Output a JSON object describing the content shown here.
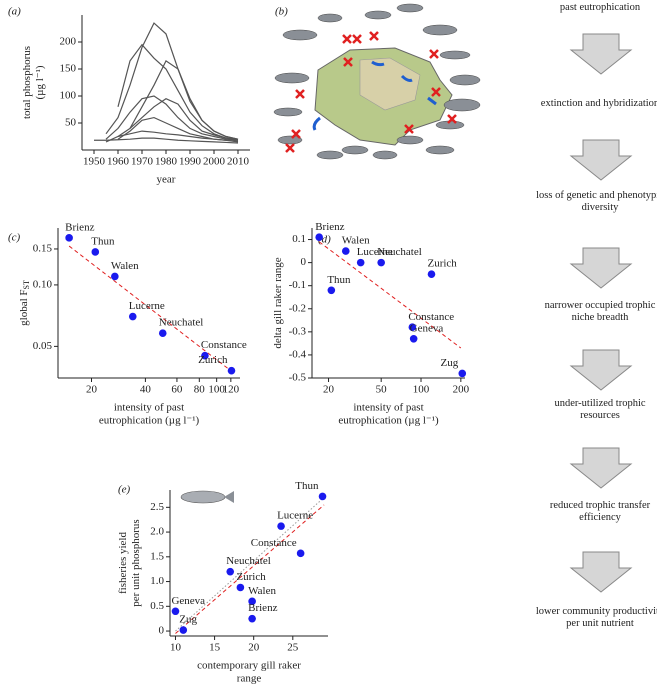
{
  "chart_data": [
    {
      "type": "line",
      "panel_label": "(a)",
      "xlabel": "year",
      "ylabel": [
        "total phosphorus",
        "(µg l⁻¹)"
      ],
      "x": [
        1950,
        1955,
        1960,
        1965,
        1970,
        1975,
        1980,
        1985,
        1990,
        1995,
        2000,
        2005,
        2010
      ],
      "series": [
        {
          "color": "#555555",
          "values": [
            null,
            30,
            60,
            120,
            190,
            235,
            215,
            150,
            95,
            55,
            35,
            25,
            20
          ]
        },
        {
          "color": "#555555",
          "values": [
            null,
            null,
            80,
            165,
            195,
            170,
            150,
            110,
            70,
            45,
            30,
            22,
            18
          ]
        },
        {
          "color": "#555555",
          "values": [
            null,
            null,
            null,
            40,
            80,
            120,
            165,
            150,
            90,
            55,
            35,
            25,
            20
          ]
        },
        {
          "color": "#555555",
          "values": [
            null,
            20,
            40,
            70,
            95,
            100,
            85,
            60,
            40,
            30,
            25,
            20,
            18
          ]
        },
        {
          "color": "#555555",
          "values": [
            null,
            null,
            25,
            40,
            60,
            80,
            95,
            85,
            55,
            35,
            28,
            22,
            20
          ]
        },
        {
          "color": "#555555",
          "values": [
            null,
            null,
            20,
            35,
            55,
            60,
            50,
            40,
            30,
            25,
            20,
            18,
            16
          ]
        },
        {
          "color": "#555555",
          "values": [
            null,
            15,
            25,
            30,
            35,
            33,
            30,
            28,
            25,
            22,
            20,
            18,
            15
          ]
        },
        {
          "color": "#555555",
          "values": [
            18,
            18,
            19,
            20,
            22,
            22,
            20,
            18,
            17,
            16,
            15,
            14,
            13
          ]
        }
      ],
      "xlim": [
        1945,
        2015
      ],
      "xticks": [
        1950,
        1960,
        1970,
        1980,
        1990,
        2000,
        2010
      ],
      "ylim": [
        0,
        250
      ],
      "yticks": [
        50,
        100,
        150,
        200
      ]
    },
    {
      "type": "scatter",
      "panel_label": "(c)",
      "xlabel": [
        "intensity of past",
        "eutrophication (µg l⁻¹)"
      ],
      "ylabel": "global F",
      "ylabel_subscript": "ST",
      "xscale": "log",
      "yscale": "log",
      "x": [
        15,
        21,
        27,
        34,
        50,
        86,
        121
      ],
      "series": [
        {
          "color": "#1a1aee",
          "values": [
            0.17,
            0.145,
            0.11,
            0.07,
            0.058,
            0.045,
            0.038
          ]
        }
      ],
      "point_labels": [
        "Brienz",
        "Thun",
        "Walen",
        "Lucerne",
        "Neuchatel",
        "Constance",
        "Zurich"
      ],
      "trend_lines": [
        {
          "color": "#e02020",
          "dash": "dashed",
          "x": [
            15,
            120
          ],
          "values": [
            0.155,
            0.038
          ]
        }
      ],
      "xlim": [
        13,
        135
      ],
      "xticks": [
        20,
        40,
        60,
        80,
        100,
        120
      ],
      "ylim": [
        0.035,
        0.19
      ],
      "yticks": [
        0.05,
        {
          "value": 0.1,
          "label": "0.10"
        },
        0.15
      ]
    },
    {
      "type": "scatter",
      "panel_label": "(d)",
      "xlabel": [
        "intensity of past",
        "eutrophication (µg l⁻¹)"
      ],
      "ylabel": "delta gill raker range",
      "xscale": "log",
      "x": [
        17,
        27,
        35,
        50,
        21,
        120,
        86,
        88,
        205
      ],
      "series": [
        {
          "color": "#1a1aee",
          "values": [
            0.11,
            0.05,
            0,
            0,
            -0.12,
            -0.05,
            -0.28,
            -0.33,
            -0.48
          ]
        }
      ],
      "point_labels": [
        "Brienz",
        "Walen",
        "Lucerne",
        "Neuchatel",
        "Thun",
        "Zurich",
        "Constance",
        "Geneva",
        "Zug"
      ],
      "trend_lines": [
        {
          "color": "#e02020",
          "dash": "dashed",
          "x": [
            17,
            200
          ],
          "values": [
            0.09,
            -0.37
          ]
        }
      ],
      "xlim": [
        15,
        215
      ],
      "xticks": [
        20,
        50,
        100,
        200
      ],
      "ylim": [
        -0.5,
        0.15
      ],
      "yticks": [
        0.1,
        0,
        -0.1,
        -0.2,
        -0.3,
        -0.4,
        -0.5
      ]
    },
    {
      "type": "scatter",
      "panel_label": "(e)",
      "xlabel": [
        "contemporary gill raker",
        "range"
      ],
      "ylabel": [
        "fisheries yield",
        "per unit phosphorus"
      ],
      "x": [
        28.8,
        23.5,
        26,
        17,
        18.3,
        19.8,
        19.8,
        10,
        11
      ],
      "series": [
        {
          "color": "#1a1aee",
          "values": [
            2.72,
            2.12,
            1.57,
            1.2,
            0.88,
            0.6,
            0.25,
            0.4,
            0.02
          ]
        }
      ],
      "point_labels": [
        "Thun",
        "Lucerne",
        "Constance",
        "Neuchatel",
        "Zurich",
        "Walen",
        "Brienz",
        "Geneva",
        "Zug"
      ],
      "trend_lines": [
        {
          "color": "#e02020",
          "dash": "dashed",
          "x": [
            10,
            29
          ],
          "values": [
            -0.05,
            2.55
          ]
        },
        {
          "color": "#999999",
          "dash": "dotted",
          "x": [
            10,
            29
          ],
          "values": [
            0,
            2.7
          ]
        }
      ],
      "xlim": [
        9.3,
        29.5
      ],
      "xticks": [
        10,
        15,
        20,
        25
      ],
      "ylim": [
        -0.1,
        2.85
      ],
      "yticks": [
        0,
        0.5,
        {
          "value": 1,
          "label": "1.0"
        },
        1.5,
        {
          "value": 2,
          "label": "2.0"
        },
        2.5
      ]
    }
  ],
  "map": {
    "panel_label": "(b)"
  },
  "flow": {
    "steps": [
      "past eutrophication",
      "extinction and hybridization",
      "loss of genetic and phenotypic diversity",
      "narrower occupied trophic niche breadth",
      "under-utilized trophic resources",
      "reduced trophic transfer efficiency",
      "lower community productivity per unit nutrient"
    ]
  }
}
